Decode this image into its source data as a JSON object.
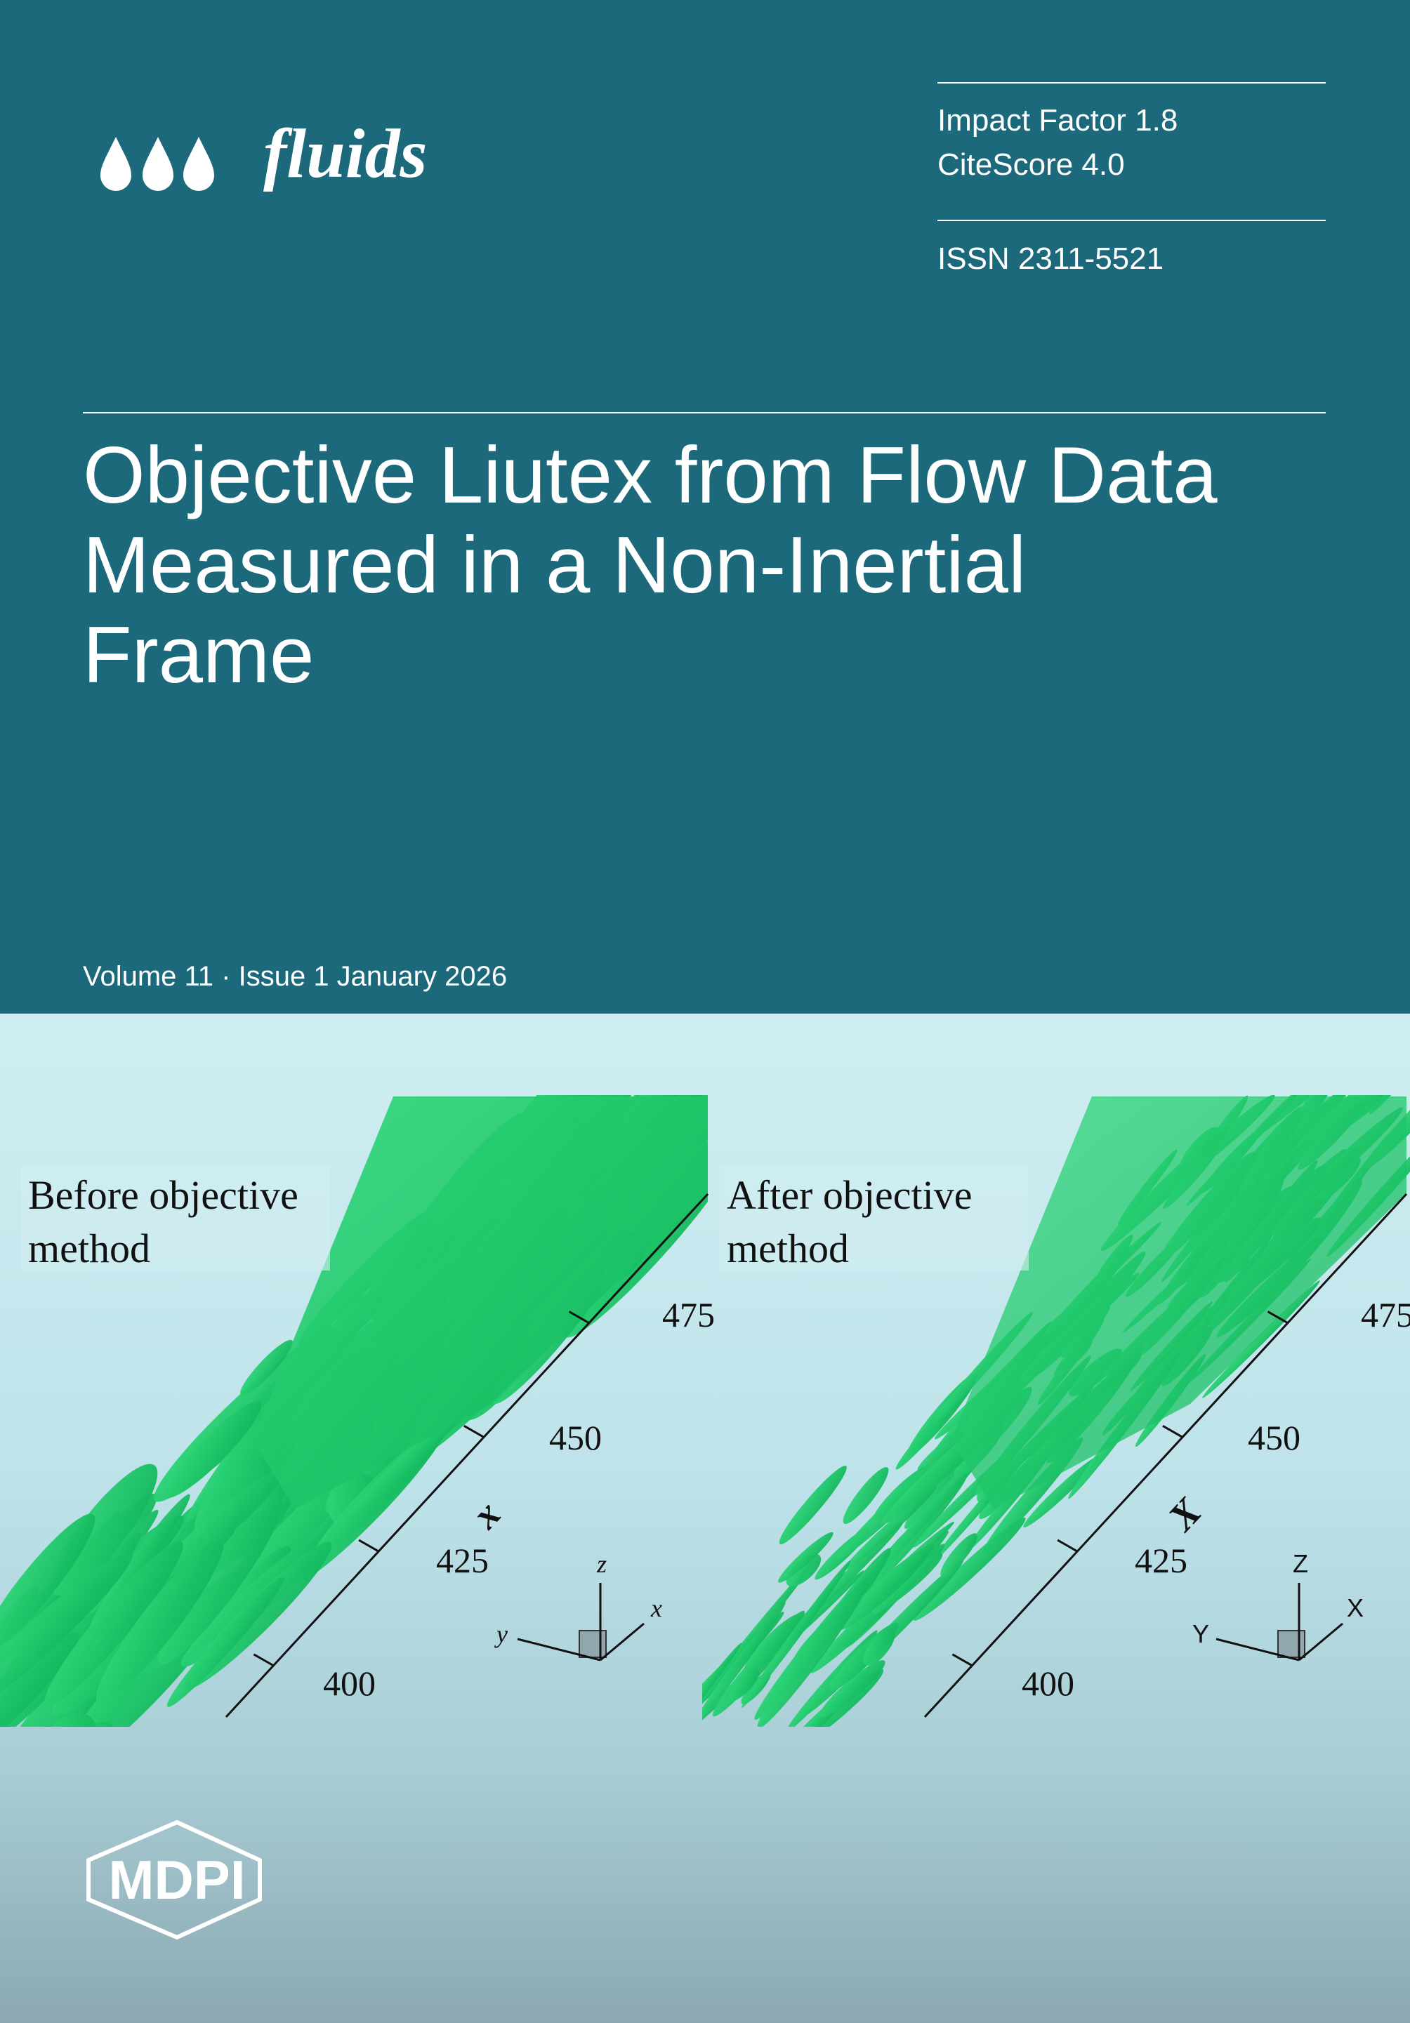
{
  "journal": {
    "name": "fluids",
    "impact_factor": "Impact Factor 1.8",
    "citescore": "CiteScore 4.0",
    "issn": "ISSN 2311-5521"
  },
  "article": {
    "title_lines": [
      "Objective Liutex from Flow Data",
      "Measured in a Non-Inertial",
      "Frame"
    ]
  },
  "issue": "Volume 11 · Issue 1 January 2026",
  "figure": {
    "panels": [
      {
        "label_lines": [
          "Before objective",
          "method"
        ],
        "axis_ticks": [
          400,
          425,
          450,
          475
        ],
        "axis_label": "x",
        "triad": [
          "z",
          "y",
          "x"
        ]
      },
      {
        "label_lines": [
          "After objective",
          "method"
        ],
        "axis_ticks": [
          400,
          425,
          450,
          475
        ],
        "axis_label": "X",
        "triad": [
          "Z",
          "Y",
          "X"
        ]
      }
    ]
  },
  "publisher": "MDPI"
}
